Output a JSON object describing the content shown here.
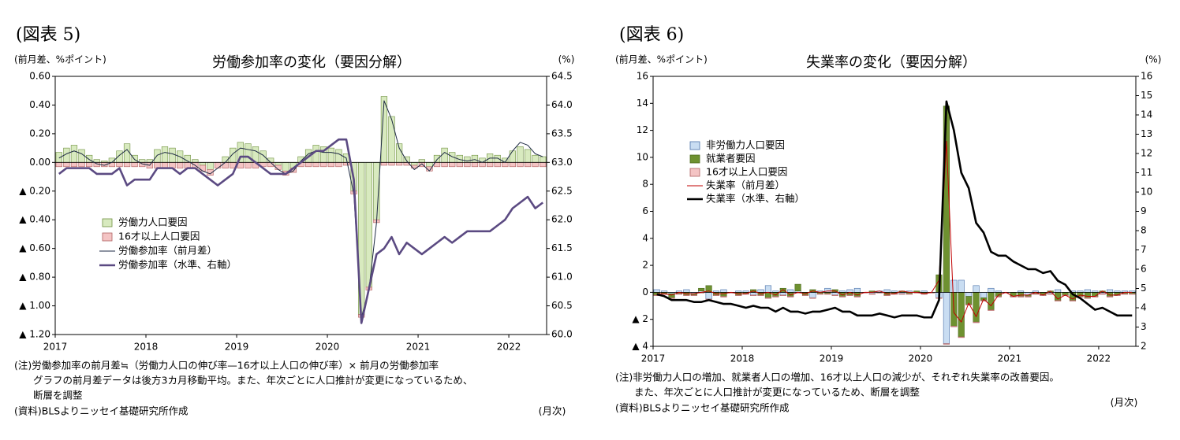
{
  "chart_data": [
    {
      "type": "bar",
      "figure_label": "(図表 5)",
      "title": "労働参加率の変化（要因分解）",
      "ylabel": "(前月差、%ポイント)",
      "y2label": "(%)",
      "xlabel": "(月次)",
      "notes": [
        "(注)労働参加率の前月差≒（労働力人口の伸び率—16才以上人口の伸び率）× 前月の労働参加率",
        "グラフの前月差データは後方3カ月移動平均。また、年次ごとに人口推計が変更になっているため、",
        "断層を調整"
      ],
      "source": "(資料)BLSよりニッセイ基礎研究所作成",
      "categories": [
        "2017",
        null,
        null,
        null,
        null,
        null,
        null,
        null,
        null,
        null,
        null,
        null,
        "2018",
        null,
        null,
        null,
        null,
        null,
        null,
        null,
        null,
        null,
        null,
        null,
        "2019",
        null,
        null,
        null,
        null,
        null,
        null,
        null,
        null,
        null,
        null,
        null,
        "2020",
        null,
        null,
        null,
        null,
        null,
        null,
        null,
        null,
        null,
        null,
        null,
        "2021",
        null,
        null,
        null,
        null,
        null,
        null,
        null,
        null,
        null,
        null,
        null,
        "2022",
        null,
        null,
        null,
        null
      ],
      "ylim": [
        -1.2,
        0.6
      ],
      "yticks": [
        {
          "value": 0.6,
          "label": "0.60"
        },
        {
          "value": 0.4,
          "label": "0.40"
        },
        {
          "value": 0.2,
          "label": "0.20"
        },
        {
          "value": 0,
          "label": "0.00"
        },
        {
          "value": -0.2,
          "label": "▲ 0.20"
        },
        {
          "value": -0.4,
          "label": "▲ 0.40"
        },
        {
          "value": -0.6,
          "label": "▲ 0.60"
        },
        {
          "value": -0.8,
          "label": "▲ 0.80"
        },
        {
          "value": -1.0,
          "label": "▲ 1.00"
        },
        {
          "value": -1.2,
          "label": "▲ 1.20"
        }
      ],
      "y2lim": [
        60,
        64.5
      ],
      "y2ticks": [
        64.5,
        {
          "value": 64,
          "label": "64.0"
        },
        63.5,
        {
          "value": 63,
          "label": "63.0"
        },
        62.5,
        {
          "value": 62,
          "label": "62.0"
        },
        61.5,
        {
          "value": 61,
          "label": "61.0"
        },
        60.5,
        {
          "value": 60,
          "label": "60.0"
        }
      ],
      "legend": "left",
      "series": [
        {
          "name": "労働力人口要因",
          "kind": "bar",
          "color": "#d8eabf",
          "stroke": "#6f9040",
          "values": [
            0.07,
            0.1,
            0.12,
            0.09,
            0.05,
            0.02,
            0.01,
            0.03,
            0.08,
            0.13,
            0.05,
            0.02,
            0.02,
            0.09,
            0.11,
            0.1,
            0.08,
            0.05,
            0.02,
            -0.02,
            -0.05,
            0.0,
            0.04,
            0.1,
            0.14,
            0.13,
            0.11,
            0.08,
            0.03,
            -0.02,
            -0.06,
            -0.04,
            0.04,
            0.09,
            0.12,
            0.11,
            0.1,
            0.09,
            0.06,
            -0.2,
            -1.06,
            -0.87,
            -0.4,
            0.46,
            0.32,
            0.13,
            0.04,
            -0.02,
            0.02,
            -0.03,
            0.05,
            0.1,
            0.07,
            0.05,
            0.04,
            0.05,
            0.03,
            0.06,
            0.05,
            0.03,
            0.08,
            0.11,
            0.09,
            0.05,
            0.04
          ]
        },
        {
          "name": "16才以上人口要因",
          "kind": "bar",
          "color": "#f4c4c4",
          "stroke": "#b06060",
          "values": [
            -0.03,
            -0.03,
            -0.03,
            -0.03,
            -0.03,
            -0.03,
            -0.03,
            -0.03,
            -0.03,
            -0.03,
            -0.03,
            -0.03,
            -0.04,
            -0.04,
            -0.04,
            -0.04,
            -0.04,
            -0.04,
            -0.04,
            -0.04,
            -0.04,
            -0.04,
            -0.04,
            -0.04,
            -0.04,
            -0.04,
            -0.04,
            -0.03,
            -0.03,
            -0.03,
            -0.03,
            -0.03,
            -0.03,
            -0.03,
            -0.03,
            -0.03,
            -0.03,
            -0.03,
            -0.02,
            -0.02,
            -0.02,
            -0.02,
            -0.02,
            -0.02,
            -0.02,
            -0.02,
            -0.02,
            -0.02,
            -0.03,
            -0.03,
            -0.03,
            -0.03,
            -0.03,
            -0.03,
            -0.03,
            -0.03,
            -0.03,
            -0.03,
            -0.03,
            -0.03,
            -0.03,
            -0.03,
            -0.03,
            -0.03,
            -0.03
          ]
        },
        {
          "name": "労働参加率（前月差）",
          "kind": "line",
          "color": "#1e2a44",
          "values": [
            0.03,
            0.06,
            0.08,
            0.06,
            0.02,
            -0.01,
            -0.02,
            0.0,
            0.05,
            0.09,
            0.02,
            -0.01,
            -0.02,
            0.05,
            0.07,
            0.06,
            0.04,
            0.01,
            -0.02,
            -0.06,
            -0.08,
            -0.04,
            0.0,
            0.06,
            0.1,
            0.09,
            0.08,
            0.05,
            0.0,
            -0.05,
            -0.08,
            -0.06,
            0.01,
            0.06,
            0.08,
            0.07,
            0.07,
            0.06,
            0.03,
            -0.22,
            -1.08,
            -0.89,
            -0.42,
            0.43,
            0.3,
            0.1,
            0.01,
            -0.05,
            -0.01,
            -0.06,
            0.02,
            0.07,
            0.04,
            0.02,
            0.01,
            0.02,
            0.0,
            0.03,
            0.03,
            0.0,
            0.08,
            0.14,
            0.12,
            0.06,
            0.04
          ]
        },
        {
          "name": "労働参加率（水準、右軸）",
          "kind": "line",
          "axis": "y2",
          "color": "#5b4a82",
          "values": [
            62.8,
            62.9,
            62.9,
            62.9,
            62.9,
            62.8,
            62.8,
            62.8,
            62.9,
            62.6,
            62.7,
            62.7,
            62.7,
            62.9,
            62.9,
            62.9,
            62.8,
            62.9,
            62.9,
            62.8,
            62.7,
            62.6,
            62.7,
            62.8,
            63.1,
            63.1,
            63.0,
            62.9,
            62.8,
            62.8,
            62.8,
            62.9,
            63.0,
            63.1,
            63.2,
            63.2,
            63.3,
            63.4,
            63.4,
            62.7,
            60.2,
            60.8,
            61.4,
            61.5,
            61.7,
            61.4,
            61.6,
            61.5,
            61.4,
            61.5,
            61.6,
            61.7,
            61.6,
            61.7,
            61.8,
            61.8,
            61.8,
            61.8,
            61.9,
            62.0,
            62.2,
            62.3,
            62.4,
            62.2,
            62.3
          ]
        }
      ]
    },
    {
      "type": "bar",
      "figure_label": "(図表 6)",
      "title": "失業率の変化（要因分解）",
      "ylabel": "(前月差、%ポイント)",
      "y2label": "(%)",
      "xlabel": "(月次)",
      "notes": [
        "(注)非労働力人口の増加、就業者人口の増加、16才以上人口の減少が、それぞれ失業率の改善要因。",
        "また、年次ごとに人口推計が変更になっているため、断層を調整"
      ],
      "source": "(資料)BLSよりニッセイ基礎研究所作成",
      "categories": [
        "2017",
        null,
        null,
        null,
        null,
        null,
        null,
        null,
        null,
        null,
        null,
        null,
        "2018",
        null,
        null,
        null,
        null,
        null,
        null,
        null,
        null,
        null,
        null,
        null,
        "2019",
        null,
        null,
        null,
        null,
        null,
        null,
        null,
        null,
        null,
        null,
        null,
        "2020",
        null,
        null,
        null,
        null,
        null,
        null,
        null,
        null,
        null,
        null,
        null,
        "2021",
        null,
        null,
        null,
        null,
        null,
        null,
        null,
        null,
        null,
        null,
        null,
        "2022",
        null,
        null,
        null,
        null
      ],
      "ylim": [
        -4,
        16
      ],
      "yticks": [
        16,
        14,
        12,
        10,
        8,
        6,
        4,
        2,
        0,
        {
          "value": -2,
          "label": "▲ 2"
        },
        {
          "value": -4,
          "label": "▲ 4"
        }
      ],
      "y2lim": [
        2,
        16
      ],
      "y2ticks": [
        16,
        15,
        14,
        13,
        12,
        11,
        10,
        9,
        8,
        7,
        6,
        5,
        4,
        3,
        2
      ],
      "legend": "upper left",
      "series": [
        {
          "name": "非労働力人口要因",
          "kind": "bar",
          "color": "#c9ddf2",
          "stroke": "#4a70a8",
          "values": [
            0.2,
            0.1,
            -0.1,
            0.1,
            0.2,
            -0.1,
            0.1,
            -0.5,
            0.1,
            0.2,
            0.0,
            0.1,
            0.1,
            -0.2,
            0.2,
            0.5,
            0.1,
            -0.2,
            0.2,
            0.1,
            0.0,
            -0.4,
            0.1,
            0.3,
            -0.2,
            0.1,
            0.2,
            0.3,
            0.0,
            -0.1,
            0.1,
            0.2,
            0.1,
            -0.1,
            0.1,
            0.0,
            0.1,
            0.0,
            -0.4,
            -3.8,
            0.9,
            0.9,
            -0.3,
            0.5,
            -0.4,
            0.3,
            0.1,
            0.0,
            0.0,
            0.1,
            -0.2,
            0.1,
            0.0,
            -0.1,
            0.2,
            0.0,
            0.1,
            0.1,
            0.2,
            0.1,
            -0.1,
            0.2,
            0.1,
            0.1,
            0.1
          ]
        },
        {
          "name": "就業者要因",
          "kind": "bar",
          "color": "#6e9130",
          "stroke": "#4d6a1e",
          "values": [
            -0.2,
            -0.1,
            -0.3,
            -0.1,
            -0.2,
            -0.1,
            0.2,
            0.5,
            -0.2,
            -0.3,
            0.0,
            -0.2,
            -0.1,
            0.2,
            -0.2,
            -0.4,
            -0.3,
            0.3,
            -0.3,
            0.5,
            -0.2,
            0.2,
            -0.1,
            -0.1,
            0.2,
            -0.3,
            -0.2,
            -0.3,
            0.0,
            0.1,
            0.0,
            -0.2,
            -0.1,
            0.1,
            -0.1,
            0.1,
            -0.1,
            0.0,
            1.3,
            13.8,
            -2.5,
            -3.3,
            -0.6,
            -2.2,
            -0.2,
            -1.3,
            -0.3,
            0.0,
            -0.3,
            -0.3,
            -0.1,
            -0.1,
            -0.2,
            0.1,
            -0.6,
            -0.2,
            -0.6,
            -0.3,
            -0.4,
            -0.3,
            0.1,
            -0.3,
            -0.2,
            -0.1,
            -0.1
          ]
        },
        {
          "name": "16才以上人口要因",
          "kind": "bar",
          "color": "#f4c4c4",
          "stroke": "#b06060",
          "values": [
            -0.05,
            -0.05,
            -0.05,
            -0.05,
            -0.05,
            -0.05,
            -0.05,
            -0.05,
            -0.05,
            -0.05,
            -0.05,
            -0.05,
            -0.05,
            -0.05,
            -0.05,
            -0.05,
            -0.05,
            -0.05,
            -0.05,
            -0.05,
            -0.05,
            -0.05,
            -0.05,
            -0.05,
            -0.05,
            -0.05,
            -0.05,
            -0.05,
            -0.05,
            -0.05,
            -0.05,
            -0.05,
            -0.05,
            -0.05,
            -0.05,
            -0.05,
            -0.05,
            -0.05,
            -0.05,
            -0.05,
            -0.05,
            -0.05,
            -0.05,
            -0.05,
            -0.05,
            -0.05,
            -0.05,
            -0.05,
            -0.05,
            -0.05,
            -0.05,
            -0.05,
            -0.05,
            -0.05,
            -0.05,
            -0.05,
            -0.05,
            -0.05,
            -0.05,
            -0.05,
            -0.05,
            -0.05,
            -0.05,
            -0.05,
            -0.05
          ]
        },
        {
          "name": "失業率（前月差）",
          "kind": "line",
          "color": "#c00000",
          "values": [
            -0.1,
            -0.1,
            -0.2,
            0.0,
            -0.1,
            -0.1,
            0.0,
            0.1,
            -0.1,
            -0.1,
            0.0,
            -0.1,
            -0.1,
            0.1,
            -0.1,
            0.0,
            -0.2,
            0.2,
            -0.2,
            0.0,
            -0.1,
            0.1,
            0.0,
            0.1,
            0.1,
            -0.2,
            0.0,
            -0.2,
            0.0,
            0.0,
            0.1,
            -0.1,
            -0.1,
            0.1,
            0.0,
            0.0,
            -0.1,
            0.0,
            0.9,
            11.2,
            -1.5,
            -2.2,
            -0.8,
            -1.8,
            -0.5,
            -1.0,
            -0.2,
            0.0,
            -0.3,
            -0.2,
            -0.2,
            0.0,
            -0.2,
            0.1,
            -0.5,
            -0.2,
            -0.5,
            -0.2,
            -0.3,
            -0.3,
            0.1,
            -0.2,
            -0.2,
            0.0,
            0.0
          ]
        },
        {
          "name": "失業率（水準、右軸）",
          "kind": "line",
          "axis": "y2",
          "color": "#000000",
          "values": [
            4.7,
            4.6,
            4.4,
            4.4,
            4.4,
            4.3,
            4.3,
            4.4,
            4.3,
            4.2,
            4.2,
            4.1,
            4.0,
            4.1,
            4.0,
            4.0,
            3.8,
            4.0,
            3.8,
            3.8,
            3.7,
            3.8,
            3.8,
            3.9,
            4.0,
            3.8,
            3.8,
            3.6,
            3.6,
            3.6,
            3.7,
            3.6,
            3.5,
            3.6,
            3.6,
            3.6,
            3.5,
            3.5,
            4.4,
            14.7,
            13.2,
            11.0,
            10.2,
            8.4,
            7.9,
            6.9,
            6.7,
            6.7,
            6.4,
            6.2,
            6.0,
            6.0,
            5.8,
            5.9,
            5.4,
            5.2,
            4.7,
            4.5,
            4.2,
            3.9,
            4.0,
            3.8,
            3.6,
            3.6,
            3.6
          ]
        }
      ]
    }
  ]
}
